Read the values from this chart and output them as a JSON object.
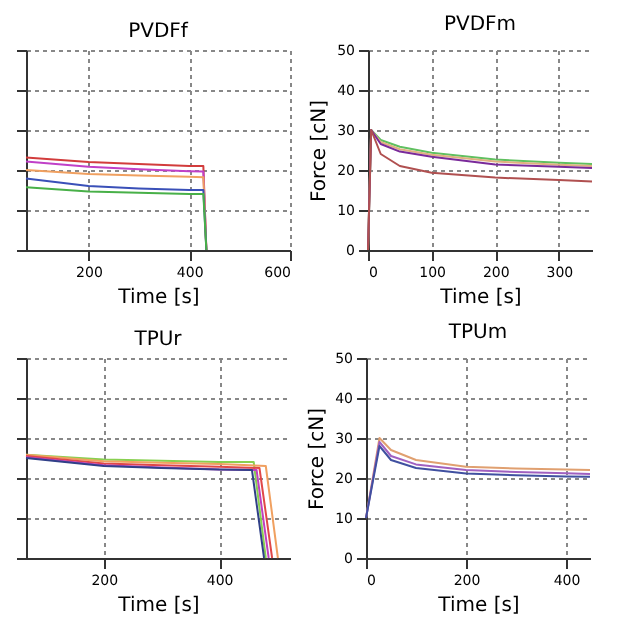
{
  "chart_data": [
    {
      "type": "line",
      "title": "PVDFf",
      "xlabel": "Time [s]",
      "xlim": [
        76,
        600
      ],
      "xticks": [
        200,
        400,
        600
      ],
      "ylim": [
        0,
        50
      ],
      "yticks": [
        0,
        10,
        20,
        30,
        40,
        50
      ],
      "grid": true,
      "tick_labels": "x",
      "series": [
        {
          "color": "#d23c3c",
          "x": [
            76,
            200,
            300,
            400,
            428,
            434
          ],
          "values": [
            23.1,
            22,
            21.5,
            21,
            21,
            0
          ]
        },
        {
          "color": "#c040c8",
          "x": [
            76,
            200,
            300,
            400,
            428,
            434
          ],
          "values": [
            22.1,
            20.8,
            20.2,
            19.7,
            19.6,
            0
          ]
        },
        {
          "color": "#f0a060",
          "x": [
            76,
            200,
            300,
            400,
            428,
            434
          ],
          "values": [
            20,
            19,
            18.6,
            18.3,
            18.2,
            0
          ]
        },
        {
          "color": "#3a50b8",
          "x": [
            76,
            200,
            300,
            400,
            428,
            434
          ],
          "values": [
            17.9,
            16,
            15.4,
            15,
            15,
            0
          ]
        },
        {
          "color": "#48b048",
          "x": [
            76,
            200,
            300,
            400,
            428,
            434
          ],
          "values": [
            15.7,
            14.6,
            14.3,
            14,
            14,
            0
          ]
        }
      ]
    },
    {
      "type": "line",
      "title": "PVDFm",
      "xlabel": "Time [s]",
      "ylabel": "Force [cN]",
      "xlim": [
        0,
        352
      ],
      "xticks": [
        0,
        100,
        200,
        300
      ],
      "ylim": [
        0,
        50
      ],
      "yticks": [
        0,
        10,
        20,
        30,
        40,
        50
      ],
      "grid": true,
      "series": [
        {
          "color": "#60c060",
          "x": [
            0,
            5,
            20,
            50,
            100,
            200,
            300,
            352
          ],
          "values": [
            0,
            30,
            27.5,
            25.8,
            24.3,
            22.6,
            21.8,
            21.5
          ]
        },
        {
          "color": "#e0b080",
          "x": [
            0,
            5,
            20,
            50,
            100,
            200,
            300,
            352
          ],
          "values": [
            0,
            30,
            27,
            25.2,
            23.8,
            22.1,
            21.3,
            21
          ]
        },
        {
          "color": "#7a2a9a",
          "x": [
            0,
            5,
            20,
            50,
            100,
            200,
            300,
            352
          ],
          "values": [
            0,
            30,
            26.5,
            24.6,
            23.3,
            21.4,
            20.8,
            20.5
          ]
        },
        {
          "color": "#b05050",
          "x": [
            0,
            5,
            20,
            50,
            100,
            200,
            300,
            352
          ],
          "values": [
            0,
            30,
            24,
            21,
            19.3,
            18.1,
            17.5,
            17.1
          ]
        }
      ]
    },
    {
      "type": "line",
      "title": "TPUr",
      "xlabel": "Time [s]",
      "xlim": [
        65,
        523
      ],
      "xticks": [
        200,
        400
      ],
      "ylim": [
        0,
        50
      ],
      "yticks": [
        0,
        10,
        20,
        30,
        40,
        50
      ],
      "grid": true,
      "tick_labels": "x",
      "series": [
        {
          "color": "#88d050",
          "x": [
            65,
            200,
            300,
            400,
            460,
            481
          ],
          "values": [
            25.8,
            24.6,
            24.3,
            24,
            24,
            0
          ]
        },
        {
          "color": "#f0a060",
          "x": [
            65,
            200,
            300,
            400,
            481,
            502
          ],
          "values": [
            25.8,
            24.2,
            23.8,
            23.5,
            23,
            0
          ]
        },
        {
          "color": "#e04848",
          "x": [
            65,
            200,
            300,
            400,
            470,
            492
          ],
          "values": [
            25.5,
            23.6,
            23.2,
            22.8,
            22.5,
            0
          ]
        },
        {
          "color": "#c040c0",
          "x": [
            65,
            200,
            300,
            400,
            465,
            486
          ],
          "values": [
            25.2,
            23.2,
            22.6,
            22.1,
            22,
            0
          ]
        },
        {
          "color": "#304088",
          "x": [
            65,
            200,
            300,
            400,
            457,
            478
          ],
          "values": [
            25,
            23,
            22.5,
            22.1,
            22,
            0
          ]
        }
      ]
    },
    {
      "type": "line",
      "title": "TPUm",
      "xlabel": "Time [s]",
      "ylabel": "Force [cN]",
      "xlim": [
        0,
        448
      ],
      "xticks": [
        0,
        200,
        400
      ],
      "ylim": [
        0,
        50
      ],
      "yticks": [
        0,
        10,
        20,
        30,
        40,
        50
      ],
      "grid": true,
      "series": [
        {
          "color": "#e0a070",
          "x": [
            0,
            27,
            50,
            100,
            200,
            300,
            400,
            448
          ],
          "values": [
            10,
            30,
            27,
            24.5,
            22.8,
            22.4,
            22.1,
            22
          ]
        },
        {
          "color": "#a060c0",
          "x": [
            0,
            27,
            50,
            100,
            200,
            300,
            400,
            448
          ],
          "values": [
            10,
            29,
            25.5,
            23.4,
            22,
            21.5,
            21.2,
            21
          ]
        },
        {
          "color": "#4050a0",
          "x": [
            0,
            27,
            50,
            100,
            200,
            300,
            400,
            448
          ],
          "values": [
            10,
            28,
            24.5,
            22.5,
            21.1,
            20.7,
            20.4,
            20.3
          ]
        }
      ]
    }
  ]
}
